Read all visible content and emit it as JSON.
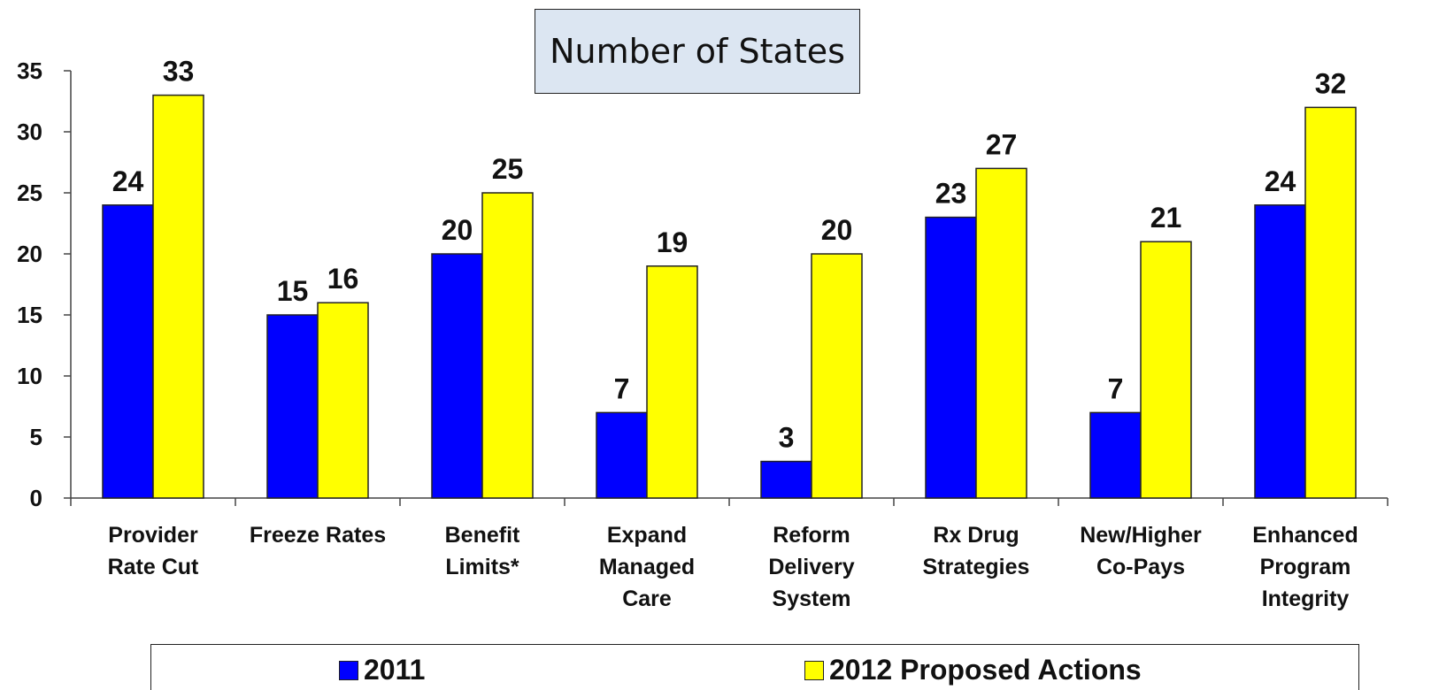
{
  "chart_data": {
    "type": "bar",
    "title": "Number of States",
    "categories": [
      [
        "Provider",
        "Rate Cut"
      ],
      [
        "Freeze Rates"
      ],
      [
        "Benefit",
        "Limits*"
      ],
      [
        "Expand",
        "Managed",
        "Care"
      ],
      [
        "Reform",
        "Delivery",
        "System"
      ],
      [
        "Rx Drug",
        "Strategies"
      ],
      [
        "New/Higher",
        "Co-Pays"
      ],
      [
        "Enhanced",
        "Program",
        "Integrity"
      ]
    ],
    "series": [
      {
        "name": "2011",
        "color": "#0000ff",
        "values": [
          24,
          15,
          20,
          7,
          3,
          23,
          7,
          24
        ]
      },
      {
        "name": "2012 Proposed Actions",
        "color": "#ffff00",
        "values": [
          33,
          16,
          25,
          19,
          20,
          27,
          21,
          32
        ]
      }
    ],
    "ylim": [
      0,
      35
    ],
    "yticks": [
      0,
      5,
      10,
      15,
      20,
      25,
      30,
      35
    ],
    "grid": false,
    "legend_position": "bottom"
  }
}
